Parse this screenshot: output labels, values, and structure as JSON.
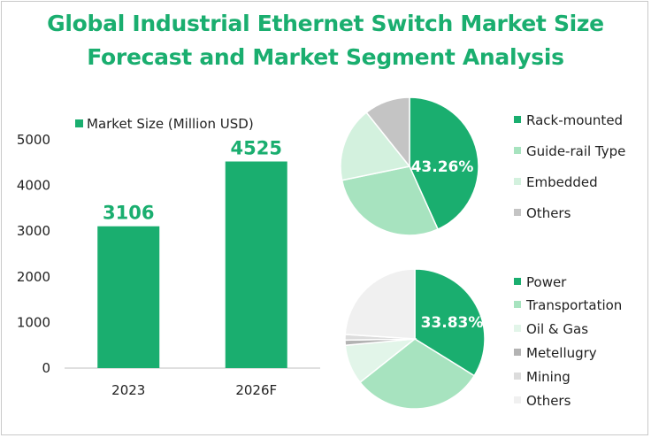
{
  "page": {
    "title_line1": "Global Industrial Ethernet Switch Market Size",
    "title_line2": "Forecast and Market Segment Analysis"
  },
  "colors": {
    "accent": "#1aae6f",
    "bar": "#1aae6f"
  },
  "chart_data": [
    {
      "type": "bar",
      "categories": [
        "2023",
        "2026F"
      ],
      "series": [
        {
          "name": "Market Size (Million USD)",
          "values": [
            3106,
            4525
          ]
        }
      ],
      "ylim": [
        0,
        5000
      ],
      "yticks": [
        0,
        1000,
        2000,
        3000,
        4000,
        5000
      ],
      "data_labels": [
        "3106",
        "4525"
      ],
      "legend": "top",
      "grid": false,
      "color": "#1aae6f"
    },
    {
      "type": "pie",
      "labels": [
        "Rack-mounted",
        "Guide-rail Type",
        "Embedded",
        "Others"
      ],
      "values": [
        43.26,
        28.5,
        17.5,
        10.74
      ],
      "colors": [
        "#1aae6f",
        "#a7e3bf",
        "#d3f1de",
        "#c4c4c4"
      ],
      "data_label": "43.26%",
      "legend": "right"
    },
    {
      "type": "pie",
      "labels": [
        "Power",
        "Transportation",
        "Oil & Gas",
        "Metellugry",
        "Mining",
        "Others"
      ],
      "values": [
        33.83,
        30.5,
        9.2,
        1.2,
        1.3,
        23.97
      ],
      "colors": [
        "#1aae6f",
        "#a7e3bf",
        "#e2f5e9",
        "#b3b3b3",
        "#dcdcdc",
        "#f0f0f0"
      ],
      "data_label": "33.83%",
      "legend": "right"
    }
  ]
}
